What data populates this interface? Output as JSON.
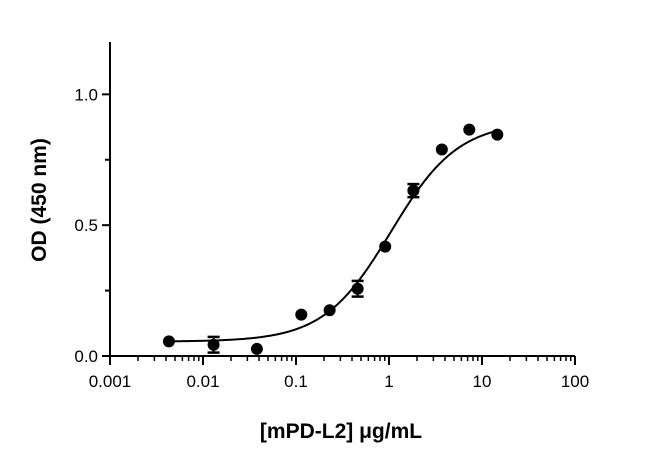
{
  "chart_data": {
    "type": "scatter",
    "xlabel": "[mPD-L2] μg/mL",
    "ylabel": "OD (450 nm)",
    "x_scale": "log",
    "xlim": [
      0.001,
      100
    ],
    "ylim": [
      0,
      1.2
    ],
    "x_ticks": [
      0.001,
      0.01,
      0.1,
      1,
      10,
      100
    ],
    "x_tick_labels": [
      "0.001",
      "0.01",
      "0.1",
      "1",
      "10",
      "100"
    ],
    "y_ticks": [
      0,
      0.5,
      1
    ],
    "y_tick_labels": [
      "0.0",
      "0.5",
      "1.0"
    ],
    "grid": false,
    "series": [
      {
        "points": [
          {
            "x": 0.0043,
            "y": 0.056,
            "err": 0
          },
          {
            "x": 0.013,
            "y": 0.043,
            "err": 0.03
          },
          {
            "x": 0.038,
            "y": 0.027,
            "err": 0
          },
          {
            "x": 0.114,
            "y": 0.158,
            "err": 0
          },
          {
            "x": 0.23,
            "y": 0.175,
            "err": 0
          },
          {
            "x": 0.46,
            "y": 0.257,
            "err": 0.03
          },
          {
            "x": 0.91,
            "y": 0.418,
            "err": 0
          },
          {
            "x": 1.83,
            "y": 0.632,
            "err": 0.025
          },
          {
            "x": 3.7,
            "y": 0.789,
            "err": 0
          },
          {
            "x": 7.3,
            "y": 0.865,
            "err": 0
          },
          {
            "x": 14.6,
            "y": 0.846,
            "err": 0
          }
        ]
      }
    ],
    "fit_curve": {
      "type": "4PL",
      "bottom": 0.055,
      "top": 0.895,
      "ec50": 1.05,
      "hill": 1.2
    },
    "colors": {
      "marker": "#000000",
      "line": "#000000"
    }
  }
}
